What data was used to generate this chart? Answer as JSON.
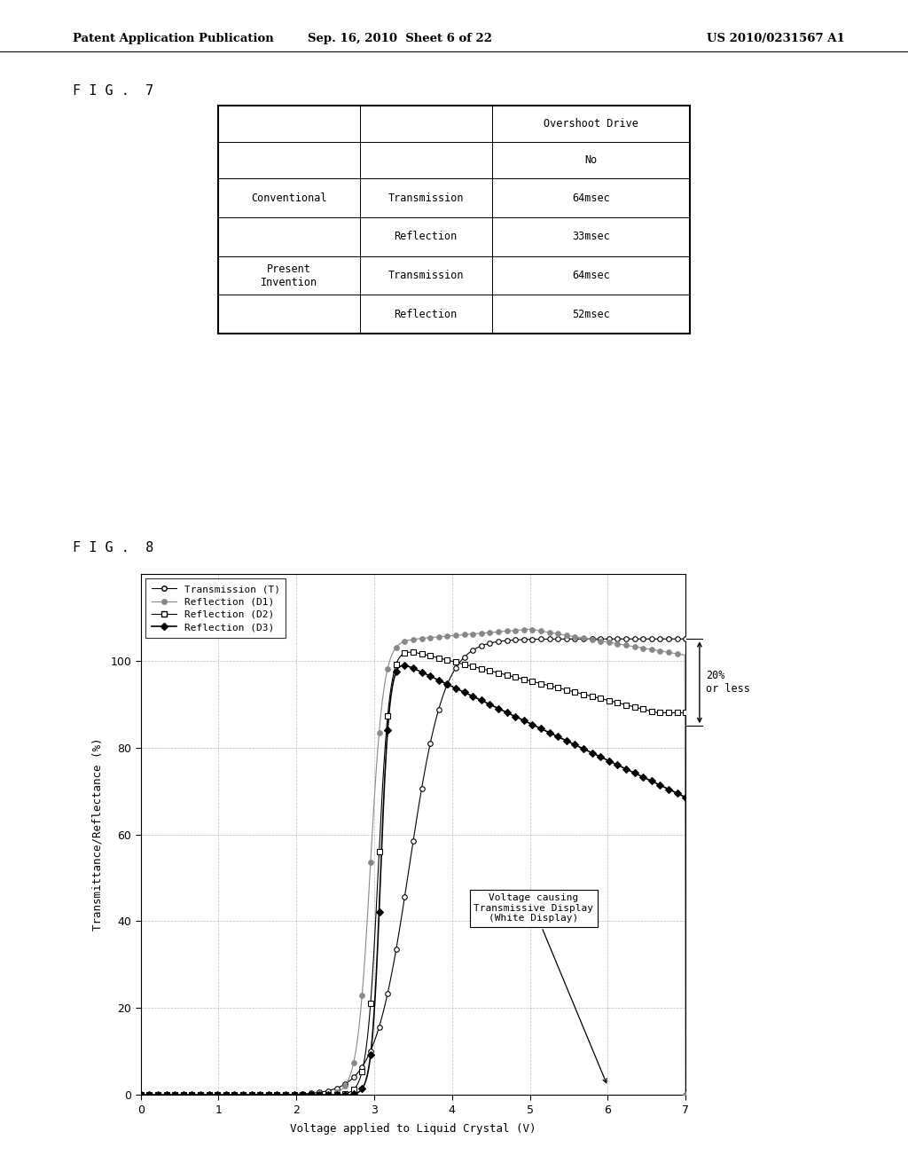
{
  "header_text_left": "Patent Application Publication",
  "header_text_mid": "Sep. 16, 2010  Sheet 6 of 22",
  "header_text_right": "US 2010/0231567 A1",
  "fig7_label": "F I G .  7",
  "fig8_label": "F I G .  8",
  "table_rows": [
    [
      "",
      "",
      "Overshoot Drive"
    ],
    [
      "",
      "",
      "No"
    ],
    [
      "Conventional",
      "Transmission",
      "64msec"
    ],
    [
      "",
      "Reflection",
      "33msec"
    ],
    [
      "Present\nInvention",
      "Transmission",
      "64msec"
    ],
    [
      "",
      "Reflection",
      "52msec"
    ]
  ],
  "chart": {
    "xlabel": "Voltage applied to Liquid Crystal (V)",
    "ylabel": "Transmittance/Reflectance (%)",
    "xlim": [
      0,
      7
    ],
    "ylim": [
      0,
      120
    ],
    "xticks": [
      0,
      1,
      2,
      3,
      4,
      5,
      6,
      7
    ],
    "yticks": [
      0,
      20,
      40,
      60,
      80,
      100
    ],
    "annotation_box_text": "Voltage causing\nTransmissive Display\n(White Display)",
    "arrow_annotation_text": "20%\nor less",
    "legend_labels": [
      "Transmission (T)",
      "Reflection (D1)",
      "Reflection (D2)",
      "Reflection (D3)"
    ]
  }
}
